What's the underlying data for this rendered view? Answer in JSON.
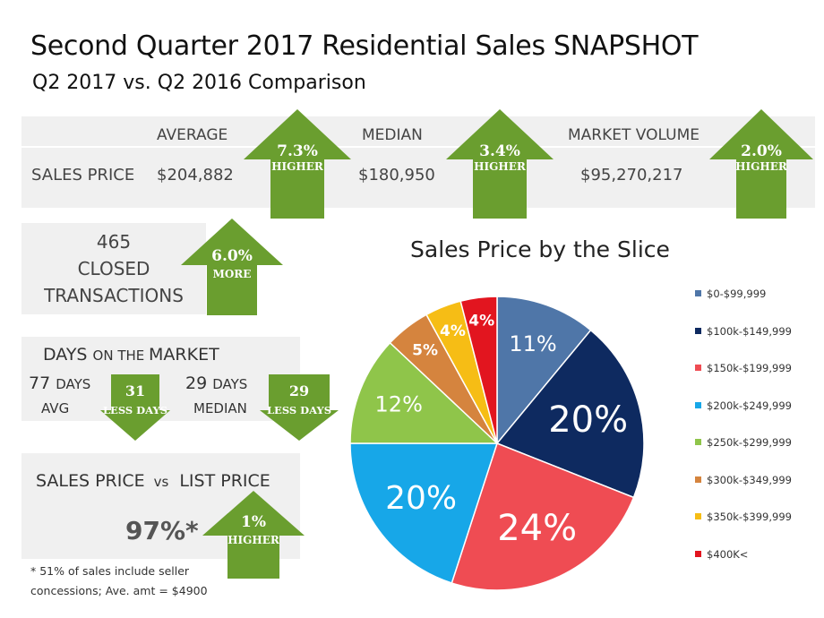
{
  "header": {
    "title": "Second Quarter 2017  Residential Sales SNAPSHOT",
    "subtitle": "Q2 2017 vs. Q2 2016 Comparison"
  },
  "sales_price_row": {
    "row_label": "SALES PRICE",
    "average": {
      "label": "AVERAGE",
      "value": "$204,882",
      "change": "7.3%",
      "direction": "HIGHER"
    },
    "median": {
      "label": "MEDIAN",
      "value": "$180,950",
      "change": "3.4%",
      "direction": "HIGHER"
    },
    "market_volume": {
      "label": "MARKET VOLUME",
      "value": "$95,270,217",
      "change": "2.0%",
      "direction": "HIGHER"
    }
  },
  "closed_transactions": {
    "count": "465",
    "line1": "CLOSED",
    "line2": "TRANSACTIONS",
    "change": "6.0%",
    "direction": "MORE"
  },
  "days_on_market": {
    "title_a": "DAYS ",
    "title_b": "ON THE ",
    "title_c": "MARKET",
    "avg": {
      "days": "77 ",
      "unit": "DAYS",
      "label": "AVG",
      "change": "31",
      "direction": "LESS DAYS"
    },
    "median": {
      "days": "29 ",
      "unit": "DAYS",
      "label": "MEDIAN",
      "change": "29",
      "direction": "LESS DAYS"
    }
  },
  "sales_vs_list": {
    "title_a": "SALES PRICE",
    "title_vs": "vs",
    "title_b": "LIST PRICE",
    "value": "97%*",
    "change": "1%",
    "direction": "HIGHER",
    "footnote_line1": "* 51% of sales include seller",
    "footnote_line2": "concessions; Ave. amt = $4900"
  },
  "colors": {
    "arrow_green": "#6a9e2f",
    "panel_gray": "#f0f0f0"
  },
  "chart_data": {
    "type": "pie",
    "title": "Sales Price by the Slice",
    "legend_position": "right",
    "slices": [
      {
        "label": "$0-$99,999",
        "value": 11,
        "display": "11%",
        "color": "#4f76a8"
      },
      {
        "label": "$100k-$149,999",
        "value": 20,
        "display": "20%",
        "color": "#0e2a60"
      },
      {
        "label": "$150k-$199,999",
        "value": 24,
        "display": "24%",
        "color": "#ef4c53"
      },
      {
        "label": "$200k-$249,999",
        "value": 20,
        "display": "20%",
        "color": "#17a7e8"
      },
      {
        "label": "$250k-$299,999",
        "value": 12,
        "display": "12%",
        "color": "#8fc54a"
      },
      {
        "label": "$300k-$349,999",
        "value": 5,
        "display": "5%",
        "color": "#d5843e"
      },
      {
        "label": "$350k-$399,999",
        "value": 4,
        "display": "4%",
        "color": "#f6bd15"
      },
      {
        "label": "$400K<",
        "value": 4,
        "display": "4%",
        "color": "#e2151f"
      }
    ]
  }
}
